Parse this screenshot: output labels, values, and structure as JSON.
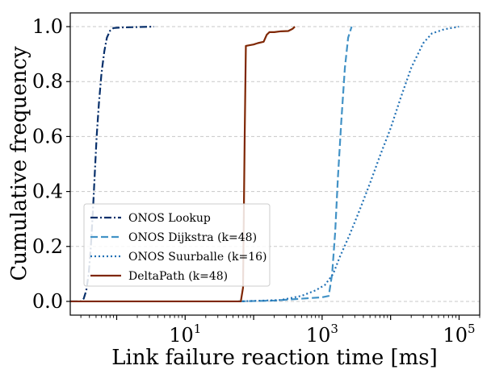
{
  "chart_data": {
    "type": "line",
    "title": "",
    "xlabel": "Link failure reaction time [ms]",
    "ylabel": "Cumulative frequency",
    "xscale": "log",
    "xlim": [
      0.21,
      200000
    ],
    "ylim": [
      -0.05,
      1.05
    ],
    "grid": "horizontal dashed",
    "legend_placement": "lower-left",
    "x_ticks": [
      {
        "value": 10,
        "base": "10",
        "exp": "1"
      },
      {
        "value": 1000,
        "base": "10",
        "exp": "3"
      },
      {
        "value": 100000,
        "base": "10",
        "exp": "5"
      }
    ],
    "y_ticks": [
      {
        "value": 0.0,
        "label": "0.0"
      },
      {
        "value": 0.2,
        "label": "0.2"
      },
      {
        "value": 0.4,
        "label": "0.4"
      },
      {
        "value": 0.6,
        "label": "0.6"
      },
      {
        "value": 0.8,
        "label": "0.8"
      },
      {
        "value": 1.0,
        "label": "1.0"
      }
    ],
    "series": [
      {
        "name": "ONOS Lookup",
        "color": "#08306b",
        "style": "dashdot",
        "points": [
          [
            0.21,
            0
          ],
          [
            0.3,
            0
          ],
          [
            0.33,
            0.01
          ],
          [
            0.36,
            0.04
          ],
          [
            0.39,
            0.1
          ],
          [
            0.42,
            0.2
          ],
          [
            0.45,
            0.33
          ],
          [
            0.48,
            0.47
          ],
          [
            0.51,
            0.6
          ],
          [
            0.55,
            0.72
          ],
          [
            0.6,
            0.83
          ],
          [
            0.66,
            0.91
          ],
          [
            0.72,
            0.96
          ],
          [
            0.8,
            0.985
          ],
          [
            0.9,
            0.995
          ],
          [
            1.2,
            0.997
          ],
          [
            3.5,
            1.0
          ]
        ]
      },
      {
        "name": "ONOS Dijkstra (k=48)",
        "color": "#4292c6",
        "style": "dashed",
        "points": [
          [
            60,
            0
          ],
          [
            200,
            0.003
          ],
          [
            500,
            0.01
          ],
          [
            1000,
            0.015
          ],
          [
            1250,
            0.02
          ],
          [
            1400,
            0.1
          ],
          [
            1550,
            0.25
          ],
          [
            1700,
            0.45
          ],
          [
            1900,
            0.65
          ],
          [
            2150,
            0.85
          ],
          [
            2400,
            0.96
          ],
          [
            2700,
            1.0
          ]
        ]
      },
      {
        "name": "ONOS Suurballe (k=16)",
        "color": "#2171b5",
        "style": "dotted",
        "points": [
          [
            60,
            0
          ],
          [
            250,
            0.005
          ],
          [
            500,
            0.02
          ],
          [
            800,
            0.04
          ],
          [
            1100,
            0.06
          ],
          [
            1450,
            0.1
          ],
          [
            1800,
            0.16
          ],
          [
            2500,
            0.24
          ],
          [
            3500,
            0.33
          ],
          [
            5000,
            0.43
          ],
          [
            7000,
            0.53
          ],
          [
            10000,
            0.63
          ],
          [
            14000,
            0.74
          ],
          [
            20000,
            0.85
          ],
          [
            30000,
            0.94
          ],
          [
            40000,
            0.975
          ],
          [
            60000,
            0.99
          ],
          [
            100000,
            1.0
          ]
        ]
      },
      {
        "name": "DeltaPath (k=48)",
        "color": "#7f2704",
        "style": "solid",
        "points": [
          [
            0.21,
            0
          ],
          [
            65,
            0
          ],
          [
            70,
            0.05
          ],
          [
            74,
            0.6
          ],
          [
            77,
            0.93
          ],
          [
            100,
            0.935
          ],
          [
            115,
            0.94
          ],
          [
            140,
            0.945
          ],
          [
            155,
            0.97
          ],
          [
            170,
            0.98
          ],
          [
            200,
            0.98
          ],
          [
            250,
            0.983
          ],
          [
            320,
            0.984
          ],
          [
            370,
            0.992
          ],
          [
            400,
            1.0
          ]
        ]
      }
    ]
  }
}
